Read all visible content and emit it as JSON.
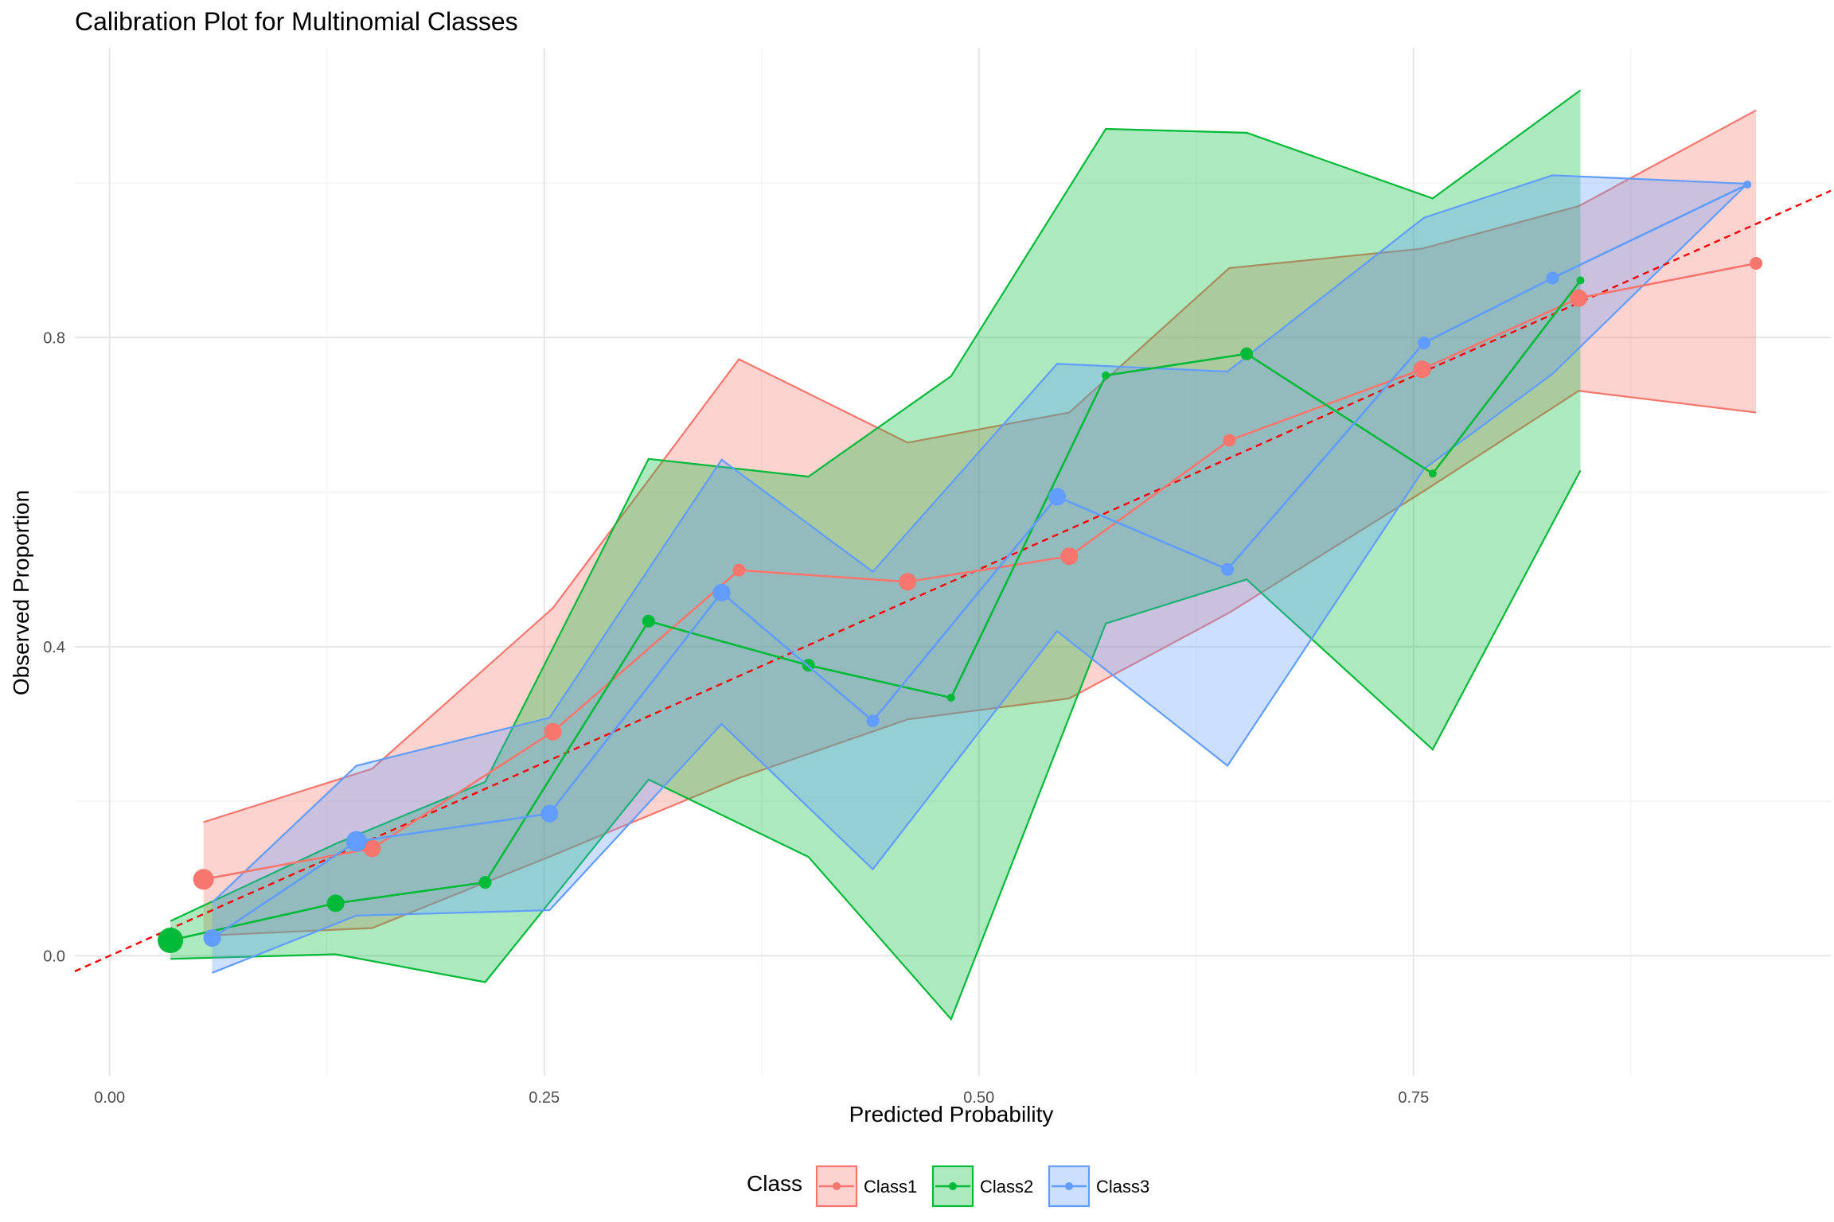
{
  "chart_data": {
    "type": "line",
    "title": "Calibration Plot for Multinomial Classes",
    "xlabel": "Predicted Probability",
    "ylabel": "Observed Proportion",
    "xlim": [
      -0.02,
      0.99
    ],
    "ylim": [
      -0.155,
      1.175
    ],
    "x_ticks": [
      0.0,
      0.25,
      0.5,
      0.75
    ],
    "x_tick_labels": [
      "0.00",
      "0.25",
      "0.50",
      "0.75"
    ],
    "x_minor_ticks": [
      0.125,
      0.375,
      0.625,
      0.875
    ],
    "y_ticks": [
      0.0,
      0.4,
      0.8
    ],
    "y_tick_labels": [
      "0.0",
      "0.4",
      "0.8"
    ],
    "y_minor_ticks": [
      -0.2,
      0.2,
      0.6,
      1.0
    ],
    "grid": true,
    "legend_title": "Class",
    "legend_position": "bottom",
    "reference_line": {
      "x": [
        -0.02,
        0.99
      ],
      "y": [
        -0.02,
        0.99
      ],
      "color": "#ff0000",
      "style": "dashed"
    },
    "series": [
      {
        "name": "Class1",
        "color": "#f8766d",
        "points": [
          {
            "x": 0.054,
            "y": 0.099,
            "n": 3
          },
          {
            "x": 0.151,
            "y": 0.139,
            "n": 2
          },
          {
            "x": 0.255,
            "y": 0.29,
            "n": 2
          },
          {
            "x": 0.362,
            "y": 0.499,
            "n": 1
          },
          {
            "x": 0.459,
            "y": 0.484,
            "n": 2
          },
          {
            "x": 0.552,
            "y": 0.517,
            "n": 2
          },
          {
            "x": 0.644,
            "y": 0.667,
            "n": 1
          },
          {
            "x": 0.755,
            "y": 0.759,
            "n": 2
          },
          {
            "x": 0.845,
            "y": 0.851,
            "n": 2
          },
          {
            "x": 0.947,
            "y": 0.896,
            "n": 1
          }
        ],
        "ribbon_upper": [
          0.173,
          0.242,
          0.45,
          0.772,
          0.664,
          0.703,
          0.89,
          0.915,
          0.97,
          1.094
        ],
        "ribbon_lower": [
          0.026,
          0.036,
          0.13,
          0.23,
          0.306,
          0.333,
          0.444,
          0.6,
          0.731,
          0.703
        ]
      },
      {
        "name": "Class2",
        "color": "#00ba38",
        "points": [
          {
            "x": 0.035,
            "y": 0.02,
            "n": 4
          },
          {
            "x": 0.13,
            "y": 0.068,
            "n": 2
          },
          {
            "x": 0.216,
            "y": 0.095,
            "n": 1
          },
          {
            "x": 0.31,
            "y": 0.433,
            "n": 1
          },
          {
            "x": 0.402,
            "y": 0.376,
            "n": 1
          },
          {
            "x": 0.484,
            "y": 0.334,
            "n": 0
          },
          {
            "x": 0.573,
            "y": 0.751,
            "n": 0
          },
          {
            "x": 0.654,
            "y": 0.779,
            "n": 1
          },
          {
            "x": 0.761,
            "y": 0.624,
            "n": 0
          },
          {
            "x": 0.846,
            "y": 0.874,
            "n": 0
          }
        ],
        "ribbon_upper": [
          0.045,
          0.145,
          0.225,
          0.643,
          0.62,
          0.75,
          1.07,
          1.065,
          0.98,
          1.12
        ],
        "ribbon_lower": [
          -0.004,
          0.002,
          -0.034,
          0.228,
          0.128,
          -0.082,
          0.43,
          0.487,
          0.267,
          0.628
        ]
      },
      {
        "name": "Class3",
        "color": "#619cff",
        "points": [
          {
            "x": 0.059,
            "y": 0.023,
            "n": 2
          },
          {
            "x": 0.142,
            "y": 0.148,
            "n": 3
          },
          {
            "x": 0.253,
            "y": 0.184,
            "n": 2
          },
          {
            "x": 0.352,
            "y": 0.47,
            "n": 2
          },
          {
            "x": 0.439,
            "y": 0.304,
            "n": 1
          },
          {
            "x": 0.545,
            "y": 0.594,
            "n": 2
          },
          {
            "x": 0.643,
            "y": 0.5,
            "n": 1
          },
          {
            "x": 0.756,
            "y": 0.793,
            "n": 1
          },
          {
            "x": 0.83,
            "y": 0.877,
            "n": 1
          },
          {
            "x": 0.942,
            "y": 0.998,
            "n": 0
          }
        ],
        "ribbon_upper": [
          0.069,
          0.246,
          0.308,
          0.642,
          0.497,
          0.766,
          0.756,
          0.955,
          1.01,
          0.999
        ],
        "ribbon_lower": [
          -0.022,
          0.052,
          0.059,
          0.3,
          0.112,
          0.42,
          0.246,
          0.63,
          0.753,
          0.999
        ]
      }
    ]
  }
}
